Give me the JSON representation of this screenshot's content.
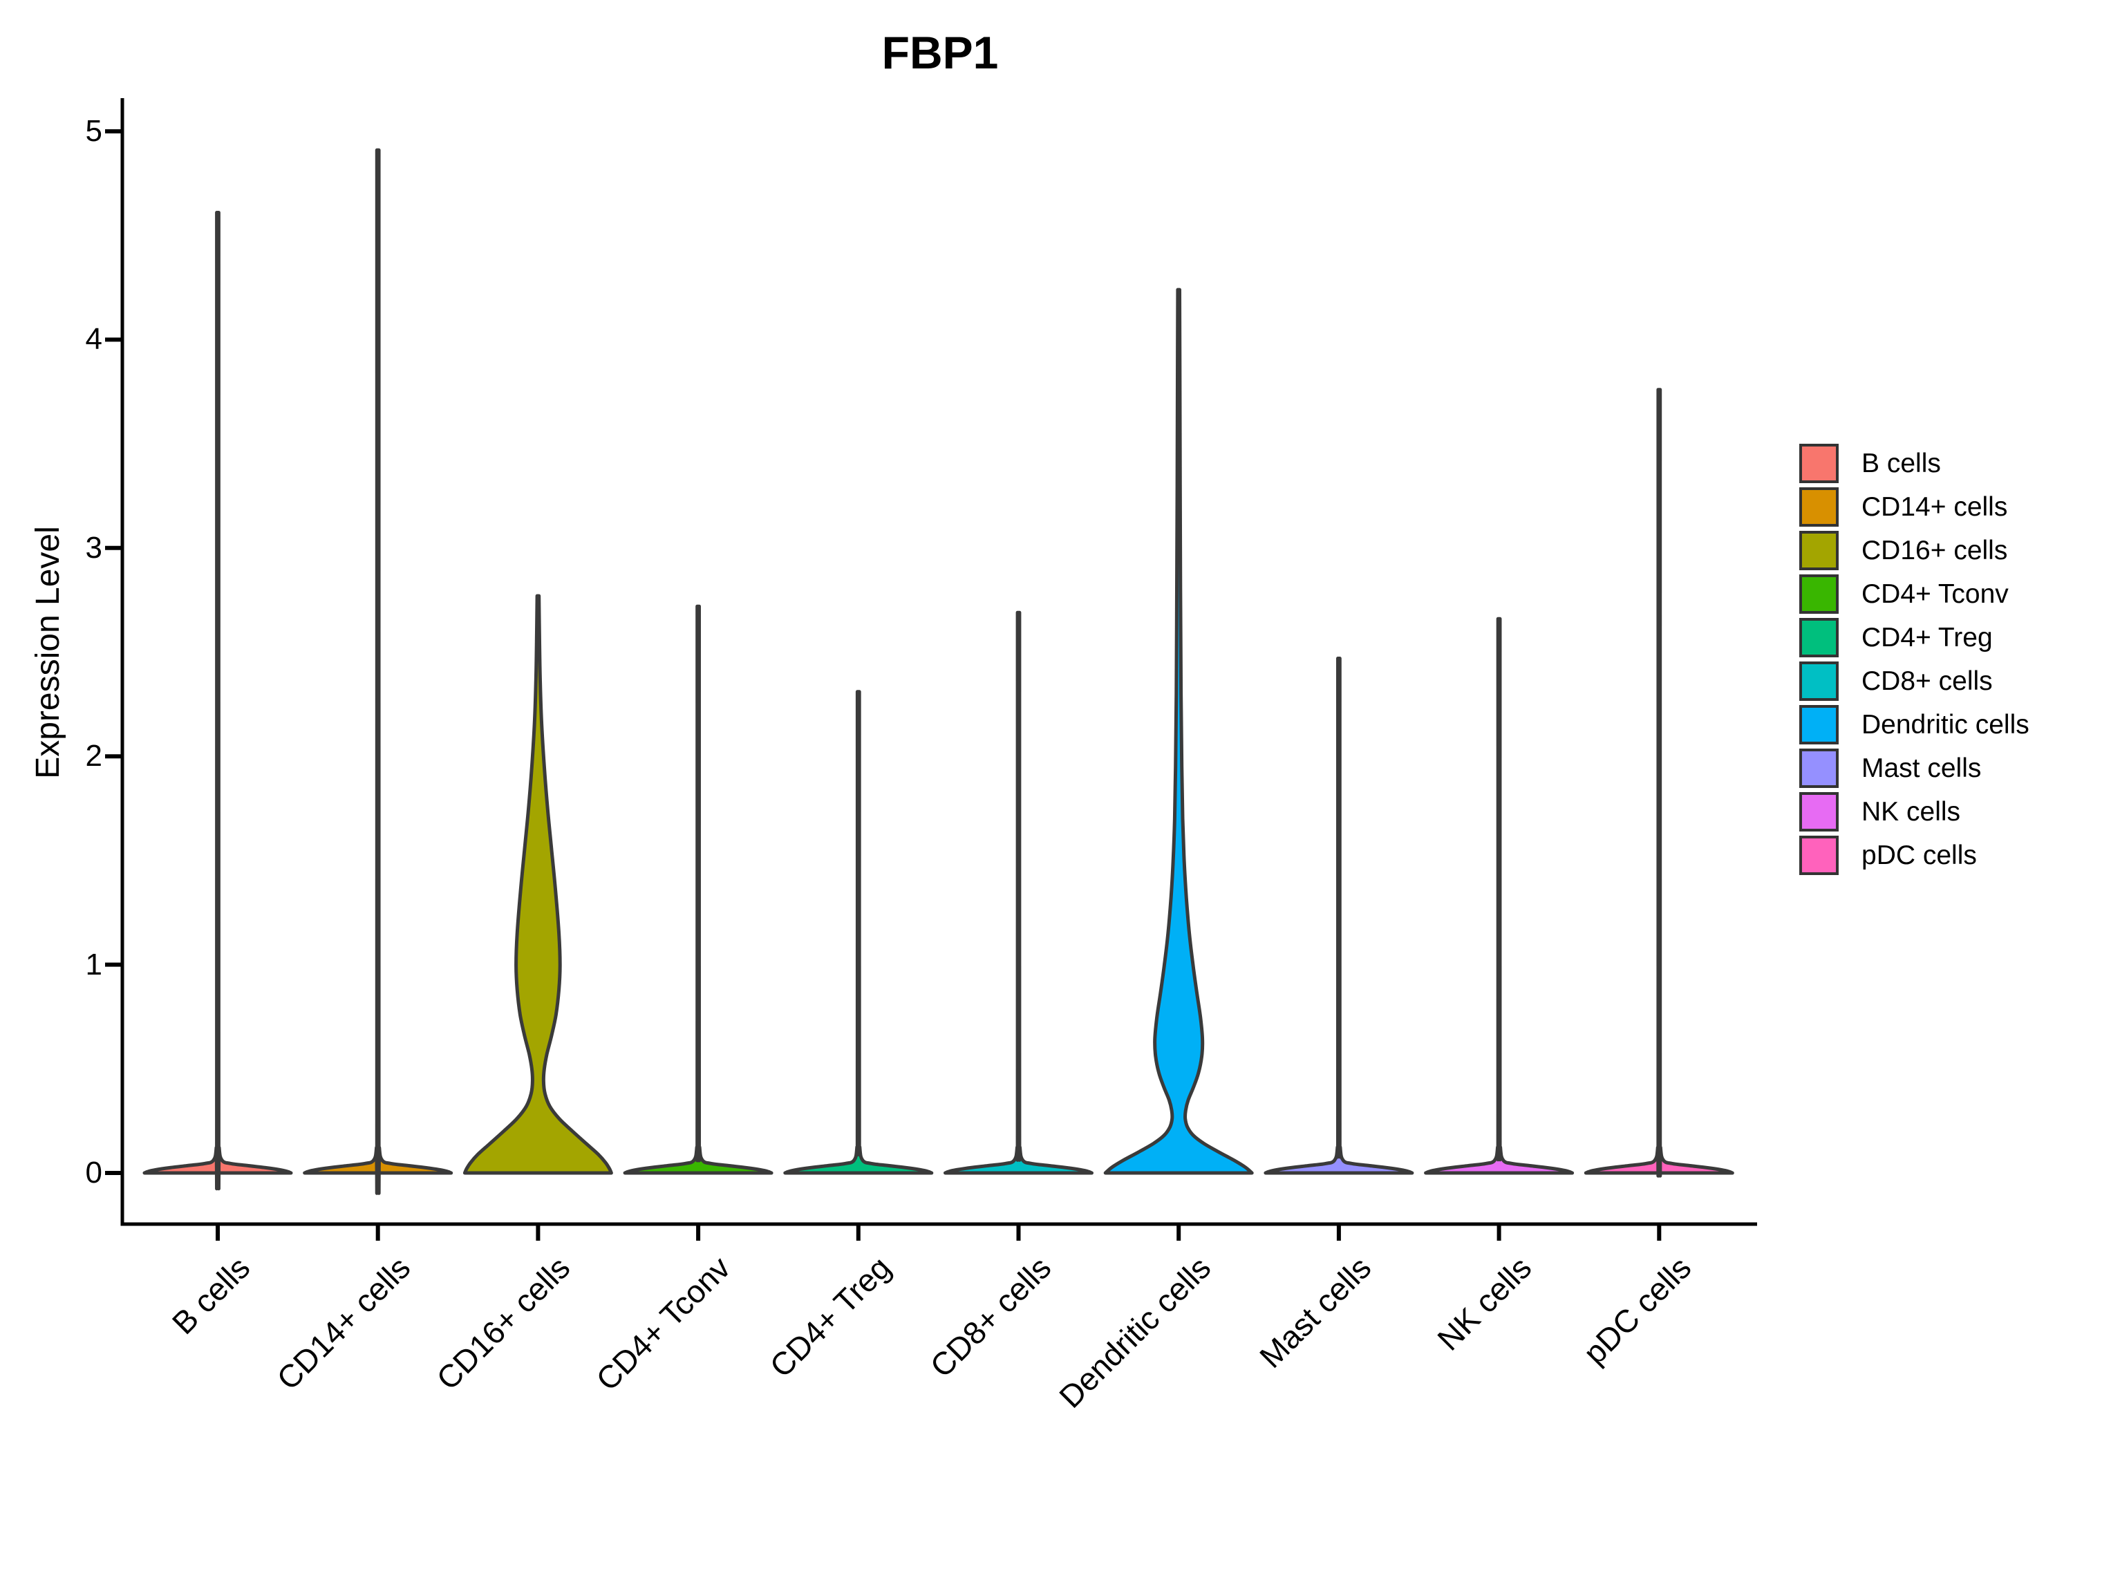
{
  "chart_data": {
    "type": "violin",
    "title": "FBP1",
    "xlabel": "",
    "ylabel": "Expression Level",
    "ylim": [
      0,
      5
    ],
    "yticks": [
      0,
      1,
      2,
      3,
      4,
      5
    ],
    "grid": false,
    "legend_position": "right",
    "outline_color": "#3A3A3A",
    "axis_color": "#000000",
    "categories": [
      "B cells",
      "CD14+ cells",
      "CD16+ cells",
      "CD4+ Tconv",
      "CD4+ Treg",
      "CD8+ cells",
      "Dendritic cells",
      "Mast cells",
      "NK cells",
      "pDC cells"
    ],
    "series": [
      {
        "name": "B cells",
        "color": "#F8766D",
        "max_expression": 4.61,
        "shape": "spike",
        "profile": [
          [
            4.61,
            0.013
          ],
          [
            0.3,
            0.013
          ],
          [
            0.12,
            0.02
          ],
          [
            0.06,
            0.06
          ],
          [
            0.045,
            0.18
          ],
          [
            0.035,
            0.42
          ],
          [
            0.025,
            0.66
          ],
          [
            0.015,
            0.85
          ],
          [
            0.007,
            0.95
          ],
          [
            0,
            1
          ]
        ]
      },
      {
        "name": "CD14+ cells",
        "color": "#D89000",
        "max_expression": 4.91,
        "shape": "spike",
        "profile": [
          [
            4.91,
            0.013
          ],
          [
            0.3,
            0.013
          ],
          [
            0.12,
            0.02
          ],
          [
            0.06,
            0.06
          ],
          [
            0.045,
            0.18
          ],
          [
            0.035,
            0.42
          ],
          [
            0.025,
            0.66
          ],
          [
            0.015,
            0.85
          ],
          [
            0.007,
            0.95
          ],
          [
            0,
            1
          ]
        ]
      },
      {
        "name": "CD16+ cells",
        "color": "#A3A500",
        "max_expression": 2.77,
        "shape": "bimodal",
        "profile": [
          [
            2.77,
            0.012
          ],
          [
            2.55,
            0.02
          ],
          [
            2.35,
            0.03
          ],
          [
            2.15,
            0.05
          ],
          [
            1.95,
            0.085
          ],
          [
            1.75,
            0.13
          ],
          [
            1.55,
            0.185
          ],
          [
            1.35,
            0.24
          ],
          [
            1.15,
            0.285
          ],
          [
            1.0,
            0.3
          ],
          [
            0.88,
            0.285
          ],
          [
            0.76,
            0.245
          ],
          [
            0.66,
            0.185
          ],
          [
            0.57,
            0.12
          ],
          [
            0.5,
            0.085
          ],
          [
            0.44,
            0.075
          ],
          [
            0.38,
            0.095
          ],
          [
            0.32,
            0.16
          ],
          [
            0.26,
            0.29
          ],
          [
            0.2,
            0.47
          ],
          [
            0.14,
            0.66
          ],
          [
            0.09,
            0.82
          ],
          [
            0.05,
            0.92
          ],
          [
            0.02,
            0.975
          ],
          [
            0,
            1
          ]
        ]
      },
      {
        "name": "CD4+ Tconv",
        "color": "#39B600",
        "max_expression": 2.72,
        "shape": "spike",
        "profile": [
          [
            2.72,
            0.013
          ],
          [
            0.3,
            0.013
          ],
          [
            0.12,
            0.02
          ],
          [
            0.06,
            0.06
          ],
          [
            0.045,
            0.18
          ],
          [
            0.035,
            0.42
          ],
          [
            0.025,
            0.66
          ],
          [
            0.015,
            0.85
          ],
          [
            0.007,
            0.95
          ],
          [
            0,
            1
          ]
        ]
      },
      {
        "name": "CD4+ Treg",
        "color": "#00BF7D",
        "max_expression": 2.31,
        "shape": "spike",
        "profile": [
          [
            2.31,
            0.013
          ],
          [
            0.3,
            0.013
          ],
          [
            0.12,
            0.02
          ],
          [
            0.06,
            0.06
          ],
          [
            0.045,
            0.18
          ],
          [
            0.035,
            0.42
          ],
          [
            0.025,
            0.66
          ],
          [
            0.015,
            0.85
          ],
          [
            0.007,
            0.95
          ],
          [
            0,
            1
          ]
        ]
      },
      {
        "name": "CD8+ cells",
        "color": "#00BFC4",
        "max_expression": 2.69,
        "shape": "spike",
        "profile": [
          [
            2.69,
            0.013
          ],
          [
            0.3,
            0.013
          ],
          [
            0.12,
            0.02
          ],
          [
            0.06,
            0.06
          ],
          [
            0.045,
            0.18
          ],
          [
            0.035,
            0.42
          ],
          [
            0.025,
            0.66
          ],
          [
            0.015,
            0.85
          ],
          [
            0.007,
            0.95
          ],
          [
            0,
            1
          ]
        ]
      },
      {
        "name": "Dendritic cells",
        "color": "#00B0F6",
        "max_expression": 4.24,
        "shape": "bimodal",
        "profile": [
          [
            4.24,
            0.012
          ],
          [
            3.8,
            0.016
          ],
          [
            3.3,
            0.02
          ],
          [
            2.8,
            0.025
          ],
          [
            2.3,
            0.032
          ],
          [
            1.95,
            0.042
          ],
          [
            1.7,
            0.055
          ],
          [
            1.5,
            0.075
          ],
          [
            1.32,
            0.105
          ],
          [
            1.15,
            0.145
          ],
          [
            1.0,
            0.195
          ],
          [
            0.86,
            0.25
          ],
          [
            0.74,
            0.3
          ],
          [
            0.64,
            0.325
          ],
          [
            0.56,
            0.315
          ],
          [
            0.48,
            0.27
          ],
          [
            0.41,
            0.2
          ],
          [
            0.35,
            0.13
          ],
          [
            0.3,
            0.095
          ],
          [
            0.26,
            0.09
          ],
          [
            0.22,
            0.12
          ],
          [
            0.18,
            0.2
          ],
          [
            0.14,
            0.35
          ],
          [
            0.1,
            0.55
          ],
          [
            0.06,
            0.76
          ],
          [
            0.03,
            0.9
          ],
          [
            0.01,
            0.97
          ],
          [
            0,
            1
          ]
        ]
      },
      {
        "name": "Mast cells",
        "color": "#9590FF",
        "max_expression": 2.47,
        "shape": "spike",
        "profile": [
          [
            2.47,
            0.013
          ],
          [
            0.3,
            0.013
          ],
          [
            0.12,
            0.02
          ],
          [
            0.06,
            0.06
          ],
          [
            0.045,
            0.18
          ],
          [
            0.035,
            0.42
          ],
          [
            0.025,
            0.66
          ],
          [
            0.015,
            0.85
          ],
          [
            0.007,
            0.95
          ],
          [
            0,
            1
          ]
        ]
      },
      {
        "name": "NK cells",
        "color": "#E76BF3",
        "max_expression": 2.66,
        "shape": "spike",
        "profile": [
          [
            2.66,
            0.013
          ],
          [
            0.3,
            0.013
          ],
          [
            0.12,
            0.02
          ],
          [
            0.06,
            0.06
          ],
          [
            0.045,
            0.18
          ],
          [
            0.035,
            0.42
          ],
          [
            0.025,
            0.66
          ],
          [
            0.015,
            0.85
          ],
          [
            0.007,
            0.95
          ],
          [
            0,
            1
          ]
        ]
      },
      {
        "name": "pDC cells",
        "color": "#FF62BC",
        "max_expression": 3.76,
        "shape": "spike",
        "profile": [
          [
            3.76,
            0.013
          ],
          [
            0.3,
            0.013
          ],
          [
            0.12,
            0.02
          ],
          [
            0.06,
            0.06
          ],
          [
            0.045,
            0.18
          ],
          [
            0.035,
            0.42
          ],
          [
            0.025,
            0.66
          ],
          [
            0.015,
            0.85
          ],
          [
            0.007,
            0.95
          ],
          [
            0,
            1
          ]
        ]
      }
    ],
    "legend_items": [
      {
        "label": "B cells",
        "color": "#F8766D"
      },
      {
        "label": "CD14+ cells",
        "color": "#D89000"
      },
      {
        "label": "CD16+ cells",
        "color": "#A3A500"
      },
      {
        "label": "CD4+ Tconv",
        "color": "#39B600"
      },
      {
        "label": "CD4+ Treg",
        "color": "#00BF7D"
      },
      {
        "label": "CD8+ cells",
        "color": "#00BFC4"
      },
      {
        "label": "Dendritic cells",
        "color": "#00B0F6"
      },
      {
        "label": "Mast cells",
        "color": "#9590FF"
      },
      {
        "label": "NK cells",
        "color": "#E76BF3"
      },
      {
        "label": "pDC cells",
        "color": "#FF62BC"
      }
    ]
  }
}
